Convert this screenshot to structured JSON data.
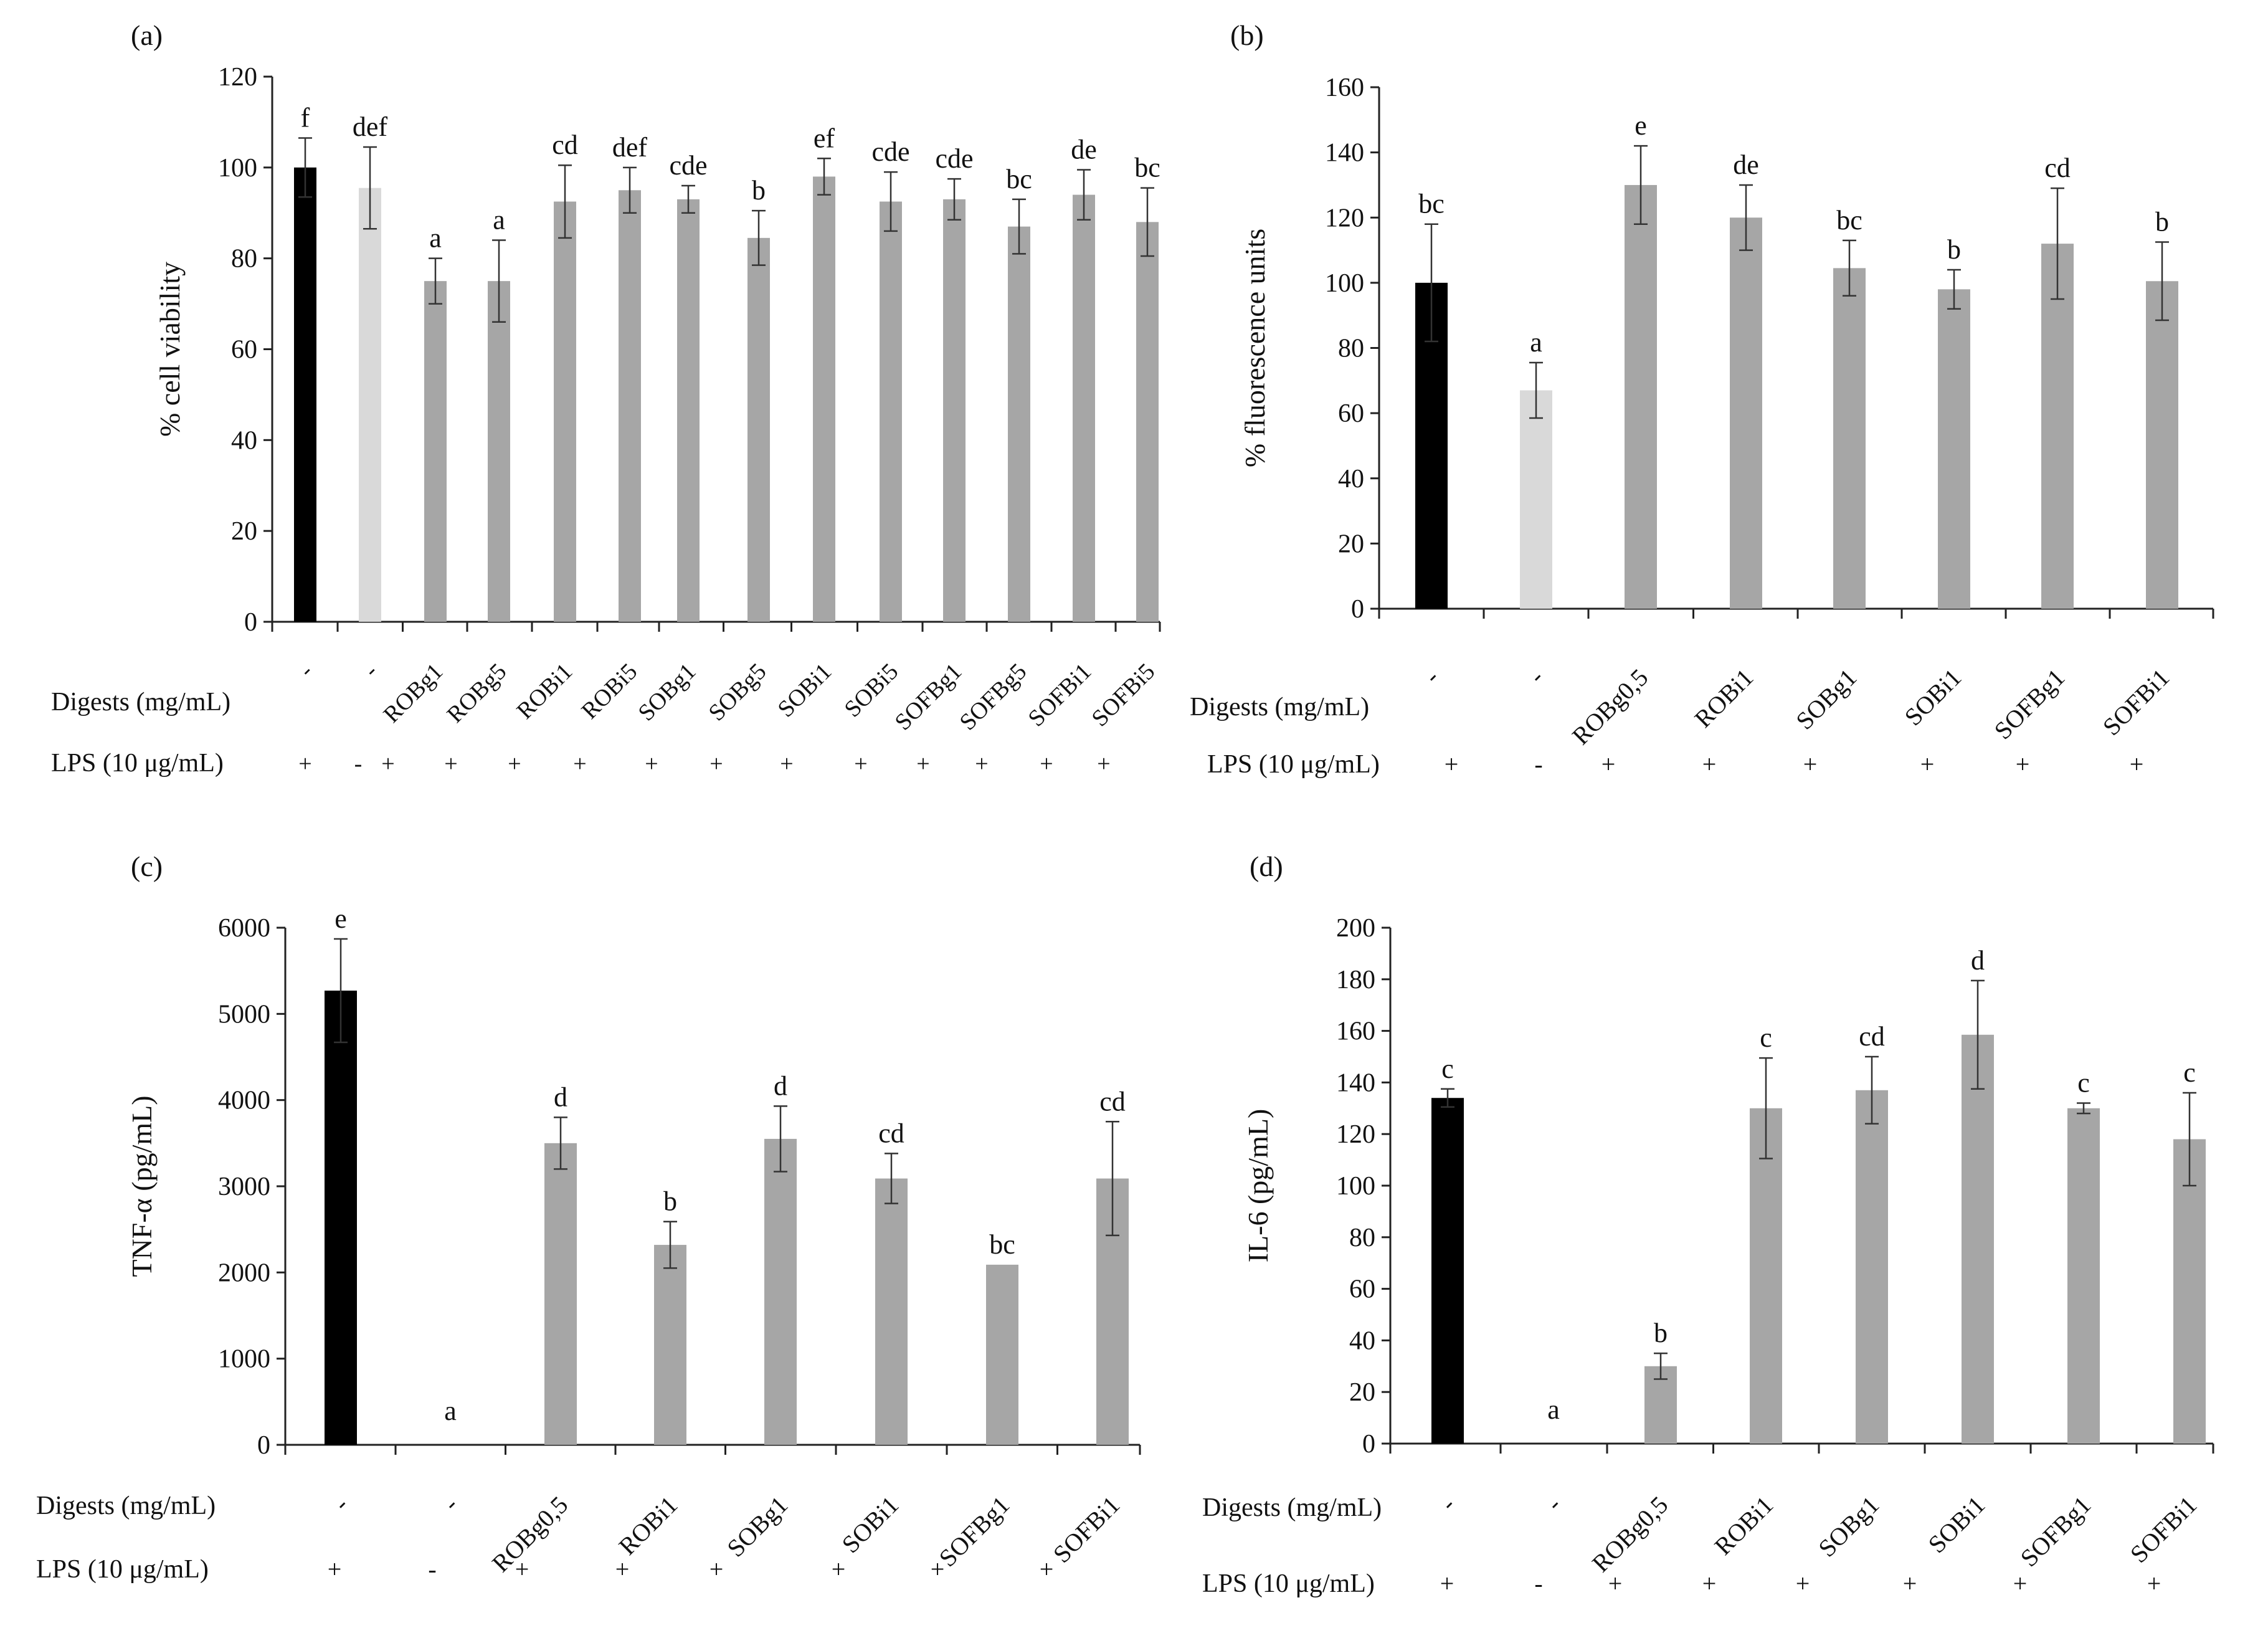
{
  "panels": [
    {
      "id": "a",
      "panel_label": "(a)",
      "row_label_digests": "Digests (mg/mL)",
      "row_label_lps": "LPS (10 μg/mL)",
      "colors": {
        "black": "#000000",
        "light": "#d9d9d9",
        "gray": "#a6a6a6"
      },
      "chart_data": {
        "type": "bar",
        "ylabel": "% cell viability",
        "ylim": [
          0,
          120
        ],
        "yticks": [
          0,
          20,
          40,
          60,
          80,
          100,
          120
        ],
        "categories": [
          "-",
          "-",
          "ROBg1",
          "ROBg5",
          "ROBi1",
          "ROBi5",
          "SOBg1",
          "SOBg5",
          "SOBi1",
          "SOBi5",
          "SOFBg1",
          "SOFBg5",
          "SOFBi1",
          "SOFBi5"
        ],
        "values": [
          100,
          95.5,
          75,
          75,
          92.5,
          95,
          93,
          84.5,
          98,
          92.5,
          93,
          87,
          94,
          88
        ],
        "errors": [
          6.5,
          9,
          5,
          9,
          8,
          5,
          3,
          6,
          4,
          6.5,
          4.5,
          6,
          5.5,
          7.5
        ],
        "letters": [
          "f",
          "def",
          "a",
          "a",
          "cd",
          "def",
          "cde",
          "b",
          "ef",
          "cde",
          "cde",
          "bc",
          "de",
          "bc"
        ],
        "bar_colors": [
          "black",
          "light",
          "gray",
          "gray",
          "gray",
          "gray",
          "gray",
          "gray",
          "gray",
          "gray",
          "gray",
          "gray",
          "gray",
          "gray"
        ],
        "lps": [
          "+",
          "-",
          "+",
          "+",
          "+",
          "+",
          "+",
          "+",
          "+",
          "+",
          "+",
          "+",
          "+",
          "+"
        ]
      }
    },
    {
      "id": "b",
      "panel_label": "(b)",
      "row_label_digests": "Digests (mg/mL)",
      "row_label_lps": "LPS (10 μg/mL)",
      "colors": {
        "black": "#000000",
        "light": "#d9d9d9",
        "gray": "#a6a6a6"
      },
      "chart_data": {
        "type": "bar",
        "ylabel": "% fluorescence units",
        "ylim": [
          0,
          160
        ],
        "yticks": [
          0,
          20,
          40,
          60,
          80,
          100,
          120,
          140,
          160
        ],
        "categories": [
          "-",
          "-",
          "ROBg0,5",
          "ROBi1",
          "SOBg1",
          "SOBi1",
          "SOFBg1",
          "SOFBi1"
        ],
        "values": [
          100,
          67,
          130,
          120,
          104.5,
          98,
          112,
          100.5
        ],
        "errors": [
          18,
          8.5,
          12,
          10,
          8.5,
          6,
          17,
          12
        ],
        "letters": [
          "bc",
          "a",
          "e",
          "de",
          "bc",
          "b",
          "cd",
          "b"
        ],
        "bar_colors": [
          "black",
          "light",
          "gray",
          "gray",
          "gray",
          "gray",
          "gray",
          "gray"
        ],
        "lps": [
          "+",
          "-",
          "+",
          "+",
          "+",
          "+",
          "+",
          "+"
        ]
      }
    },
    {
      "id": "c",
      "panel_label": "(c)",
      "row_label_digests": "Digests (mg/mL)",
      "row_label_lps": "LPS (10 μg/mL)",
      "colors": {
        "black": "#000000",
        "light": "#d9d9d9",
        "gray": "#a6a6a6"
      },
      "chart_data": {
        "type": "bar",
        "ylabel": "TNF-α (pg/mL)",
        "ylim": [
          0,
          6000
        ],
        "yticks": [
          0,
          1000,
          2000,
          3000,
          4000,
          5000,
          6000
        ],
        "categories": [
          "-",
          "-",
          "ROBg0,5",
          "ROBi1",
          "SOBg1",
          "SOBi1",
          "SOFBg1",
          "SOFBi1"
        ],
        "values": [
          5270,
          0,
          3500,
          2320,
          3550,
          3090,
          2090,
          3090
        ],
        "errors": [
          600,
          0,
          300,
          270,
          380,
          290,
          0,
          660
        ],
        "letters": [
          "e",
          "a",
          "d",
          "b",
          "d",
          "cd",
          "bc",
          "cd"
        ],
        "bar_colors": [
          "black",
          "light",
          "gray",
          "gray",
          "gray",
          "gray",
          "gray",
          "gray"
        ],
        "lps": [
          "+",
          "-",
          "+",
          "+",
          "+",
          "+",
          "+",
          "+"
        ]
      }
    },
    {
      "id": "d",
      "panel_label": "(d)",
      "row_label_digests": "Digests (mg/mL)",
      "row_label_lps": "LPS (10 μg/mL)",
      "colors": {
        "black": "#000000",
        "light": "#d9d9d9",
        "gray": "#a6a6a6"
      },
      "chart_data": {
        "type": "bar",
        "ylabel": "IL-6 (pg/mL)",
        "ylim": [
          0,
          200
        ],
        "yticks": [
          0,
          20,
          40,
          60,
          80,
          100,
          120,
          140,
          160,
          180,
          200
        ],
        "categories": [
          "-",
          "-",
          "ROBg0,5",
          "ROBi1",
          "SOBg1",
          "SOBi1",
          "SOFBg1",
          "SOFBi1"
        ],
        "values": [
          134,
          0,
          30,
          130,
          137,
          158.5,
          130,
          118
        ],
        "errors": [
          3.5,
          0,
          5,
          19.5,
          13,
          21,
          2,
          18
        ],
        "letters": [
          "c",
          "a",
          "b",
          "c",
          "cd",
          "d",
          "c",
          "c"
        ],
        "bar_colors": [
          "black",
          "light",
          "gray",
          "gray",
          "gray",
          "gray",
          "gray",
          "gray"
        ],
        "lps": [
          "+",
          "-",
          "+",
          "+",
          "+",
          "+",
          "+",
          "+"
        ]
      }
    }
  ]
}
